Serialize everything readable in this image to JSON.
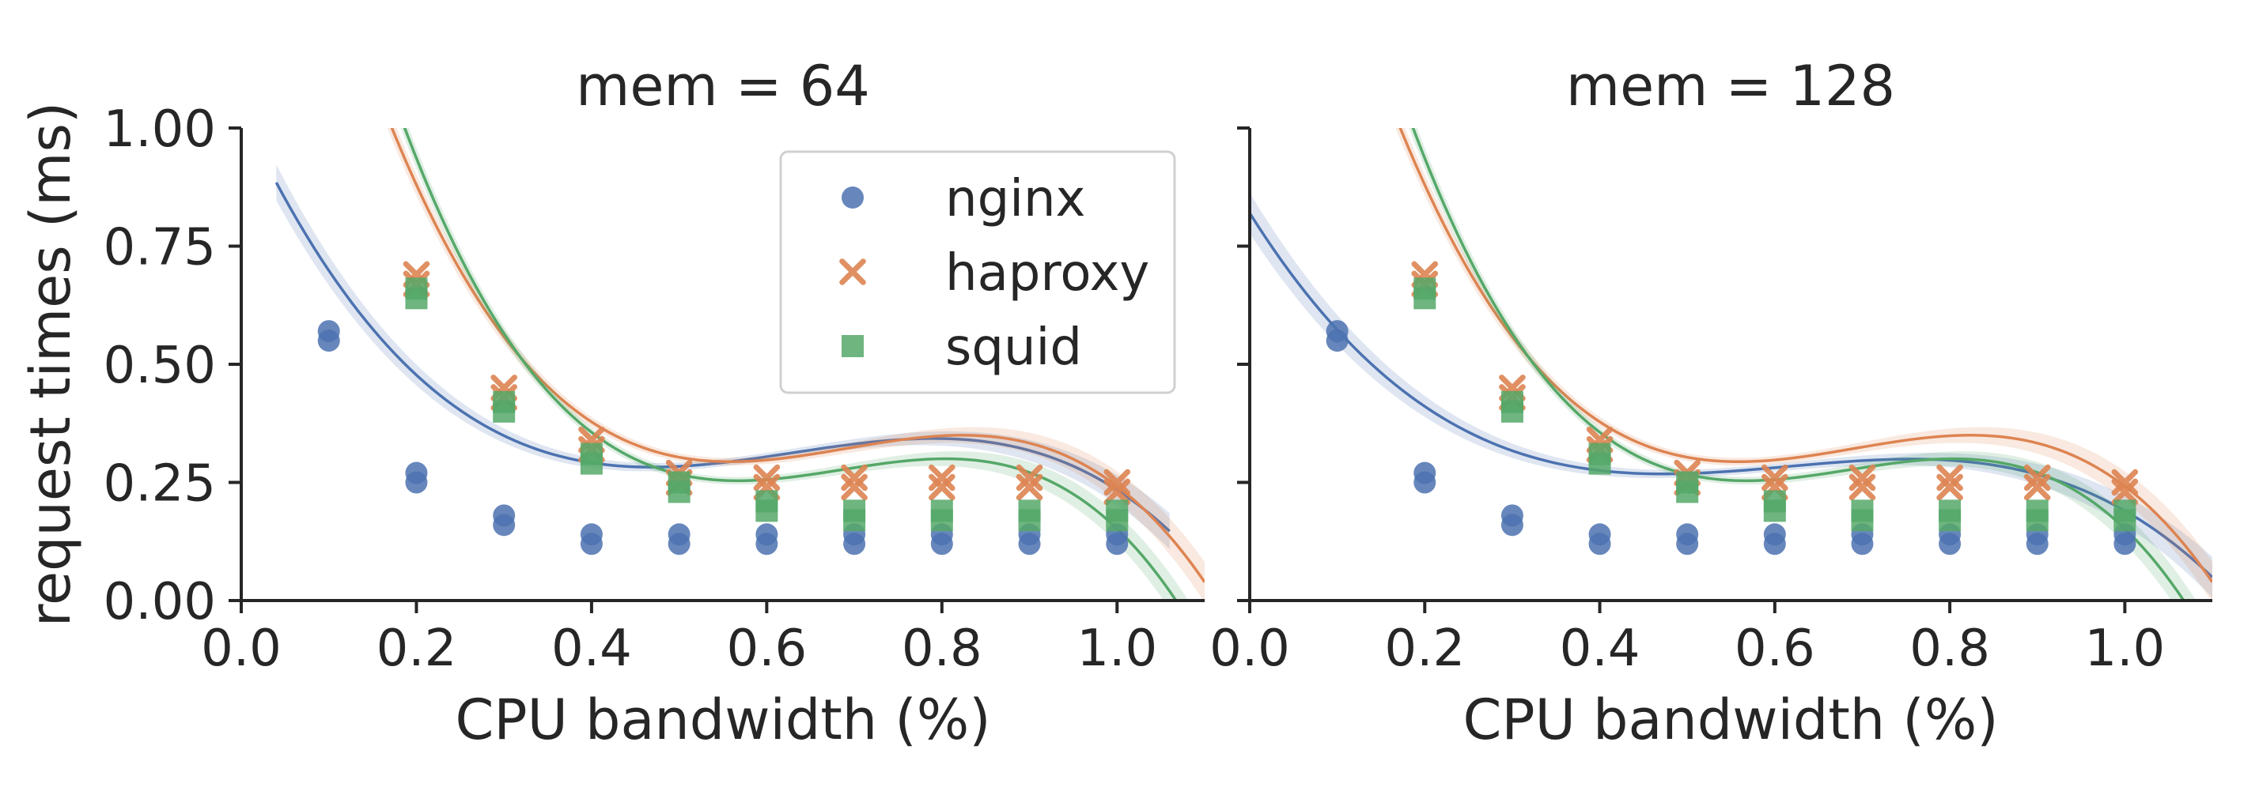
{
  "figure": {
    "ylabel": "request times (ms)",
    "xlabel": "CPU bandwidth (%)",
    "legend": [
      {
        "name": "nginx",
        "marker": "circle",
        "color": "#4c72b0"
      },
      {
        "name": "haproxy",
        "marker": "x",
        "color": "#dd8452"
      },
      {
        "name": "squid",
        "marker": "square",
        "color": "#55a868"
      }
    ]
  },
  "chart_data": [
    {
      "type": "scatter",
      "title": "mem = 64",
      "xlabel": "CPU bandwidth (%)",
      "ylabel": "request times (ms)",
      "xlim": [
        0.0,
        1.1
      ],
      "ylim": [
        0.0,
        1.0
      ],
      "xticks": [
        "0.0",
        "0.2",
        "0.4",
        "0.6",
        "0.8",
        "1.0"
      ],
      "yticks": [
        "0.00",
        "0.25",
        "0.50",
        "0.75",
        "1.00"
      ],
      "legend_position": "top-right",
      "x": [
        0.1,
        0.2,
        0.3,
        0.4,
        0.5,
        0.6,
        0.7,
        0.8,
        0.9,
        1.0
      ],
      "series": [
        {
          "name": "nginx",
          "marker": "circle",
          "color": "#4c72b0",
          "values": [
            0.56,
            0.26,
            0.17,
            0.13,
            0.13,
            0.13,
            0.13,
            0.13,
            0.13,
            0.13
          ],
          "fit": [
            1.034,
            -4.0,
            6.8,
            -3.6
          ],
          "fit_range": [
            0.04,
            1.06
          ]
        },
        {
          "name": "haproxy",
          "marker": "x",
          "color": "#dd8452",
          "values": [
            null,
            0.68,
            0.44,
            0.33,
            0.26,
            0.25,
            0.25,
            0.25,
            0.25,
            0.24
          ],
          "fit": [
            2.092,
            -8.32,
            12.5,
            -6.03
          ],
          "fit_range": [
            0.15,
            1.1
          ]
        },
        {
          "name": "squid",
          "marker": "square",
          "color": "#55a868",
          "values": [
            null,
            0.65,
            0.41,
            0.3,
            0.24,
            0.2,
            0.18,
            0.18,
            0.18,
            0.18
          ],
          "fit": [
            2.332,
            -9.58,
            14.4,
            -7.0
          ],
          "fit_range": [
            0.15,
            1.1
          ]
        }
      ]
    },
    {
      "type": "scatter",
      "title": "mem = 128",
      "xlabel": "CPU bandwidth (%)",
      "ylabel": "",
      "xlim": [
        0.0,
        1.1
      ],
      "ylim": [
        0.0,
        1.0
      ],
      "xticks": [
        "0.0",
        "0.2",
        "0.4",
        "0.6",
        "0.8",
        "1.0"
      ],
      "yticks": [],
      "x": [
        0.1,
        0.2,
        0.3,
        0.4,
        0.5,
        0.6,
        0.7,
        0.8,
        0.9,
        1.0
      ],
      "series": [
        {
          "name": "nginx",
          "marker": "circle",
          "color": "#4c72b0",
          "values": [
            0.56,
            0.26,
            0.17,
            0.13,
            0.13,
            0.13,
            0.13,
            0.13,
            0.13,
            0.13
          ],
          "fit": [
            0.82,
            -2.95,
            5.07,
            -2.75
          ],
          "fit_range": [
            0.0,
            1.1
          ]
        },
        {
          "name": "haproxy",
          "marker": "x",
          "color": "#dd8452",
          "values": [
            null,
            0.68,
            0.44,
            0.33,
            0.26,
            0.25,
            0.25,
            0.25,
            0.25,
            0.24
          ],
          "fit": [
            2.092,
            -8.32,
            12.5,
            -6.03
          ],
          "fit_range": [
            0.15,
            1.1
          ]
        },
        {
          "name": "squid",
          "marker": "square",
          "color": "#55a868",
          "values": [
            null,
            0.65,
            0.41,
            0.3,
            0.24,
            0.2,
            0.18,
            0.18,
            0.18,
            0.18
          ],
          "fit": [
            2.332,
            -9.58,
            14.4,
            -7.0
          ],
          "fit_range": [
            0.15,
            1.1
          ]
        }
      ]
    }
  ]
}
